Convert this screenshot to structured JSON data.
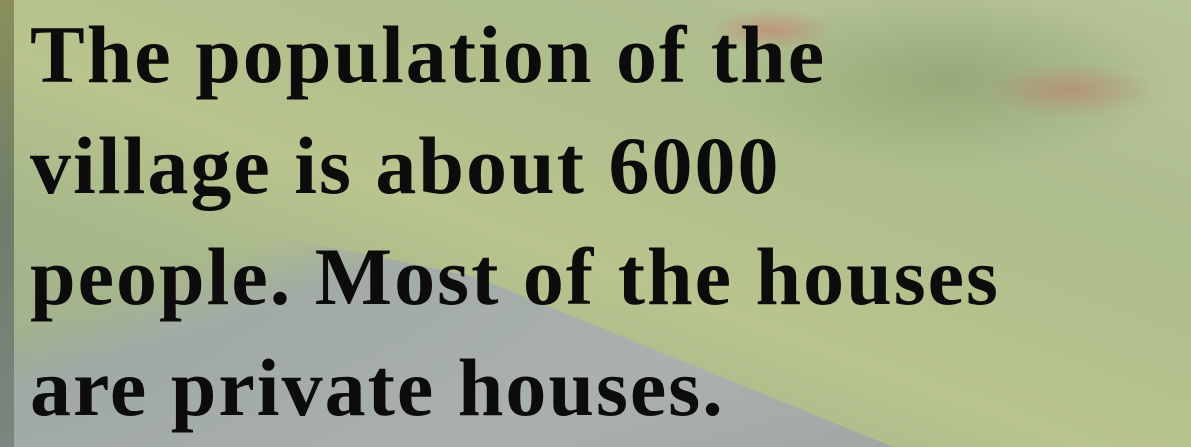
{
  "text_lines": [
    "The population of the",
    "village is about 6000",
    "people. Most of the houses",
    "are private houses."
  ]
}
